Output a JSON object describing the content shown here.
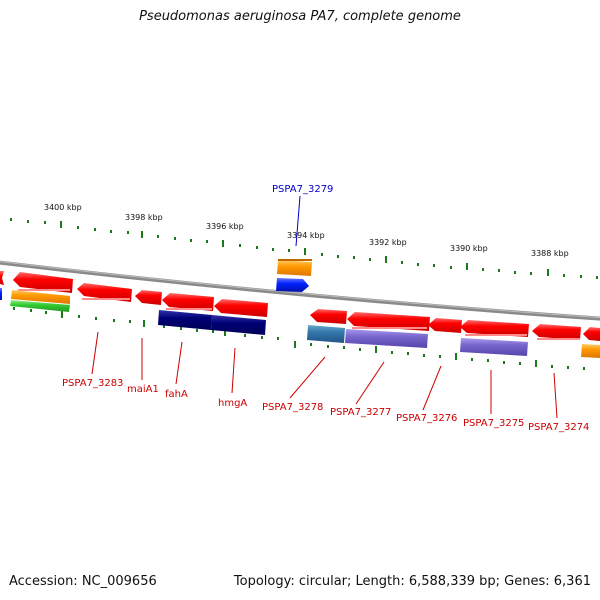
{
  "title": "Pseudomonas aeruginosa PA7, complete genome",
  "footer": {
    "accession": "Accession: NC_009656",
    "topology": "Topology: circular; Length: 6,588,339 bp; Genes: 6,361"
  },
  "scale_labels": [
    "3400 kbp",
    "3398 kbp",
    "3396 kbp",
    "3394 kbp",
    "3392 kbp",
    "3390 kbp",
    "3388 kbp"
  ],
  "gene_labels_top": [
    {
      "text": "PSPA7_3279",
      "color": "#0000cc"
    }
  ],
  "gene_labels_bottom": [
    {
      "text": "PSPA7_3283",
      "color": "#cc0000"
    },
    {
      "text": "maiA1",
      "color": "#cc0000"
    },
    {
      "text": "fahA",
      "color": "#cc0000"
    },
    {
      "text": "hmgA",
      "color": "#cc0000"
    },
    {
      "text": "PSPA7_3278",
      "color": "#cc0000"
    },
    {
      "text": "PSPA7_3277",
      "color": "#cc0000"
    },
    {
      "text": "PSPA7_3276",
      "color": "#cc0000"
    },
    {
      "text": "PSPA7_3275",
      "color": "#cc0000"
    },
    {
      "text": "PSPA7_3274",
      "color": "#cc0000"
    }
  ],
  "colors": {
    "backbone": "#8a8a8a",
    "tick": "#1a7a1a",
    "gene_red": "#ff0000",
    "gene_blue": "#0022ff",
    "gene_orange": "#ff9900",
    "gene_green": "#33cc33",
    "gene_navy": "#000077",
    "gene_purple": "#7766cc",
    "gene_steel": "#3377aa"
  }
}
